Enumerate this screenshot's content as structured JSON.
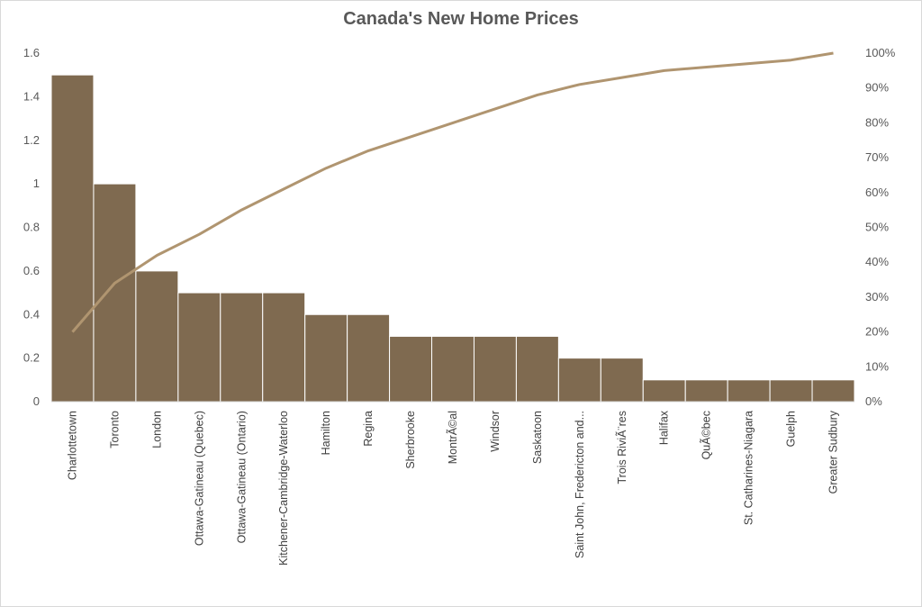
{
  "chart_data": {
    "type": "bar",
    "title": "Canada's  New Home Prices",
    "categories": [
      "Charlottetown",
      "Toronto",
      "London",
      "Ottawa-Gatineau (Quebec)",
      "Ottawa-Gatineau (Ontario)",
      "Kitchener-Cambridge-Waterloo",
      "Hamilton",
      "Regina",
      "Sherbrooke",
      "MontrÃ©al",
      "Windsor",
      "Saskatoon",
      "Saint John, Fredericton and...",
      "Trois RiviÃ¨res",
      "Halifax",
      "QuÃ©bec",
      "St. Catharines-Niagara",
      "Guelph",
      "Greater Sudbury"
    ],
    "series": [
      {
        "type": "bar",
        "values": [
          1.5,
          1.0,
          0.6,
          0.5,
          0.5,
          0.5,
          0.4,
          0.4,
          0.3,
          0.3,
          0.3,
          0.3,
          0.2,
          0.2,
          0.1,
          0.1,
          0.1,
          0.1,
          0.1
        ]
      },
      {
        "type": "line",
        "axis": "secondary",
        "values": [
          20,
          34,
          42,
          48,
          55,
          61,
          67,
          72,
          76,
          80,
          84,
          88,
          91,
          93,
          95,
          96,
          97,
          98,
          100
        ]
      }
    ],
    "y_ticks": [
      "0",
      "0.2",
      "0.4",
      "0.6",
      "0.8",
      "1",
      "1.2",
      "1.4",
      "1.6"
    ],
    "y2_ticks": [
      "0%",
      "10%",
      "20%",
      "30%",
      "40%",
      "50%",
      "60%",
      "70%",
      "80%",
      "90%",
      "100%"
    ],
    "ylim": [
      0,
      1.6
    ],
    "y2lim": [
      0,
      100
    ],
    "grid": false,
    "colors": {
      "bar": "#7f6a50",
      "bar_edge": "#ffffff",
      "line": "#b09570",
      "axis": "#d9d9d9"
    }
  }
}
